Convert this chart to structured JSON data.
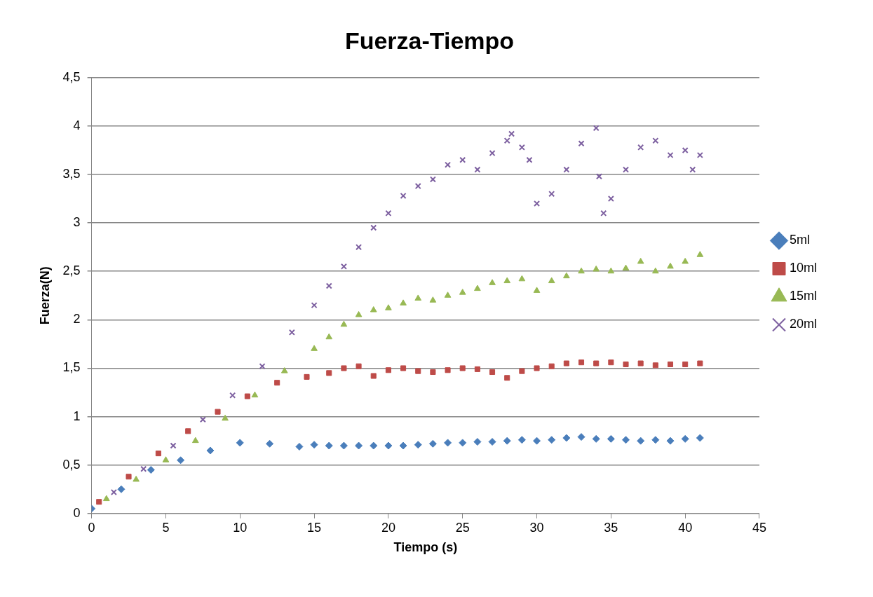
{
  "chart_data": {
    "type": "scatter",
    "title": "Fuerza-Tiempo",
    "xlabel": "Tiempo (s)",
    "ylabel": "Fuerza(N)",
    "xlim": [
      0,
      45
    ],
    "xticks": [
      0,
      5,
      10,
      15,
      20,
      25,
      30,
      35,
      40,
      45
    ],
    "ylim": [
      0,
      4.5
    ],
    "yticks": [
      0,
      {
        "value": 0.5,
        "label": "0,5"
      },
      1,
      {
        "value": 1.5,
        "label": "1,5"
      },
      2,
      {
        "value": 2.5,
        "label": "2,5"
      },
      3,
      {
        "value": 3.5,
        "label": "3,5"
      },
      4,
      {
        "value": 4.5,
        "label": "4,5"
      }
    ],
    "grid": "y",
    "legend": "right",
    "series": [
      {
        "name": "5ml",
        "color": "#4a7ebb",
        "marker": "diamond",
        "x": [
          0,
          2,
          4,
          6,
          8,
          10,
          12,
          14,
          15,
          16,
          17,
          18,
          19,
          20,
          21,
          22,
          23,
          24,
          25,
          26,
          27,
          28,
          29,
          30,
          31,
          32,
          33,
          34,
          35,
          36,
          37,
          38,
          39,
          40,
          41
        ],
        "values": [
          0.05,
          0.25,
          0.45,
          0.55,
          0.65,
          0.73,
          0.72,
          0.69,
          0.71,
          0.7,
          0.7,
          0.7,
          0.7,
          0.7,
          0.7,
          0.71,
          0.72,
          0.73,
          0.73,
          0.74,
          0.74,
          0.75,
          0.76,
          0.75,
          0.76,
          0.78,
          0.79,
          0.77,
          0.77,
          0.76,
          0.75,
          0.76,
          0.75,
          0.77,
          0.78
        ]
      },
      {
        "name": "10ml",
        "color": "#be4b48",
        "marker": "square",
        "x": [
          0.5,
          2.5,
          4.5,
          6.5,
          8.5,
          10.5,
          12.5,
          14.5,
          16,
          17,
          18,
          19,
          20,
          21,
          22,
          23,
          24,
          25,
          26,
          27,
          28,
          29,
          30,
          31,
          32,
          33,
          34,
          35,
          36,
          37,
          38,
          39,
          40,
          41
        ],
        "values": [
          0.12,
          0.38,
          0.62,
          0.85,
          1.05,
          1.21,
          1.35,
          1.41,
          1.45,
          1.5,
          1.52,
          1.42,
          1.48,
          1.5,
          1.47,
          1.46,
          1.48,
          1.5,
          1.49,
          1.46,
          1.4,
          1.47,
          1.5,
          1.52,
          1.55,
          1.56,
          1.55,
          1.56,
          1.54,
          1.55,
          1.53,
          1.54,
          1.54,
          1.55
        ]
      },
      {
        "name": "15ml",
        "color": "#98b954",
        "marker": "triangle",
        "x": [
          1,
          3,
          5,
          7,
          9,
          11,
          13,
          15,
          16,
          17,
          18,
          19,
          20,
          21,
          22,
          23,
          24,
          25,
          26,
          27,
          28,
          29,
          30,
          31,
          32,
          33,
          34,
          35,
          36,
          37,
          38,
          39,
          40,
          41
        ],
        "values": [
          0.15,
          0.35,
          0.55,
          0.75,
          0.98,
          1.22,
          1.47,
          1.7,
          1.82,
          1.95,
          2.05,
          2.1,
          2.12,
          2.17,
          2.22,
          2.2,
          2.25,
          2.28,
          2.32,
          2.38,
          2.4,
          2.42,
          2.3,
          2.4,
          2.45,
          2.5,
          2.52,
          2.5,
          2.53,
          2.6,
          2.5,
          2.55,
          2.6,
          2.67
        ]
      },
      {
        "name": "20ml",
        "color": "#7d60a0",
        "marker": "cross",
        "x": [
          1.5,
          3.5,
          5.5,
          7.5,
          9.5,
          11.5,
          13.5,
          15,
          16,
          17,
          18,
          19,
          20,
          21,
          22,
          23,
          24,
          25,
          26,
          27,
          28,
          28.3,
          29,
          29.5,
          30,
          31,
          32,
          33,
          34,
          34.2,
          34.5,
          35,
          36,
          37,
          38,
          39,
          40,
          40.5,
          41
        ],
        "values": [
          0.22,
          0.46,
          0.7,
          0.97,
          1.22,
          1.52,
          1.87,
          2.15,
          2.35,
          2.55,
          2.75,
          2.95,
          3.1,
          3.28,
          3.38,
          3.45,
          3.6,
          3.65,
          3.55,
          3.72,
          3.85,
          3.92,
          3.78,
          3.65,
          3.2,
          3.3,
          3.55,
          3.82,
          3.98,
          3.48,
          3.1,
          3.25,
          3.55,
          3.78,
          3.85,
          3.7,
          3.75,
          3.55,
          3.7
        ]
      }
    ]
  }
}
